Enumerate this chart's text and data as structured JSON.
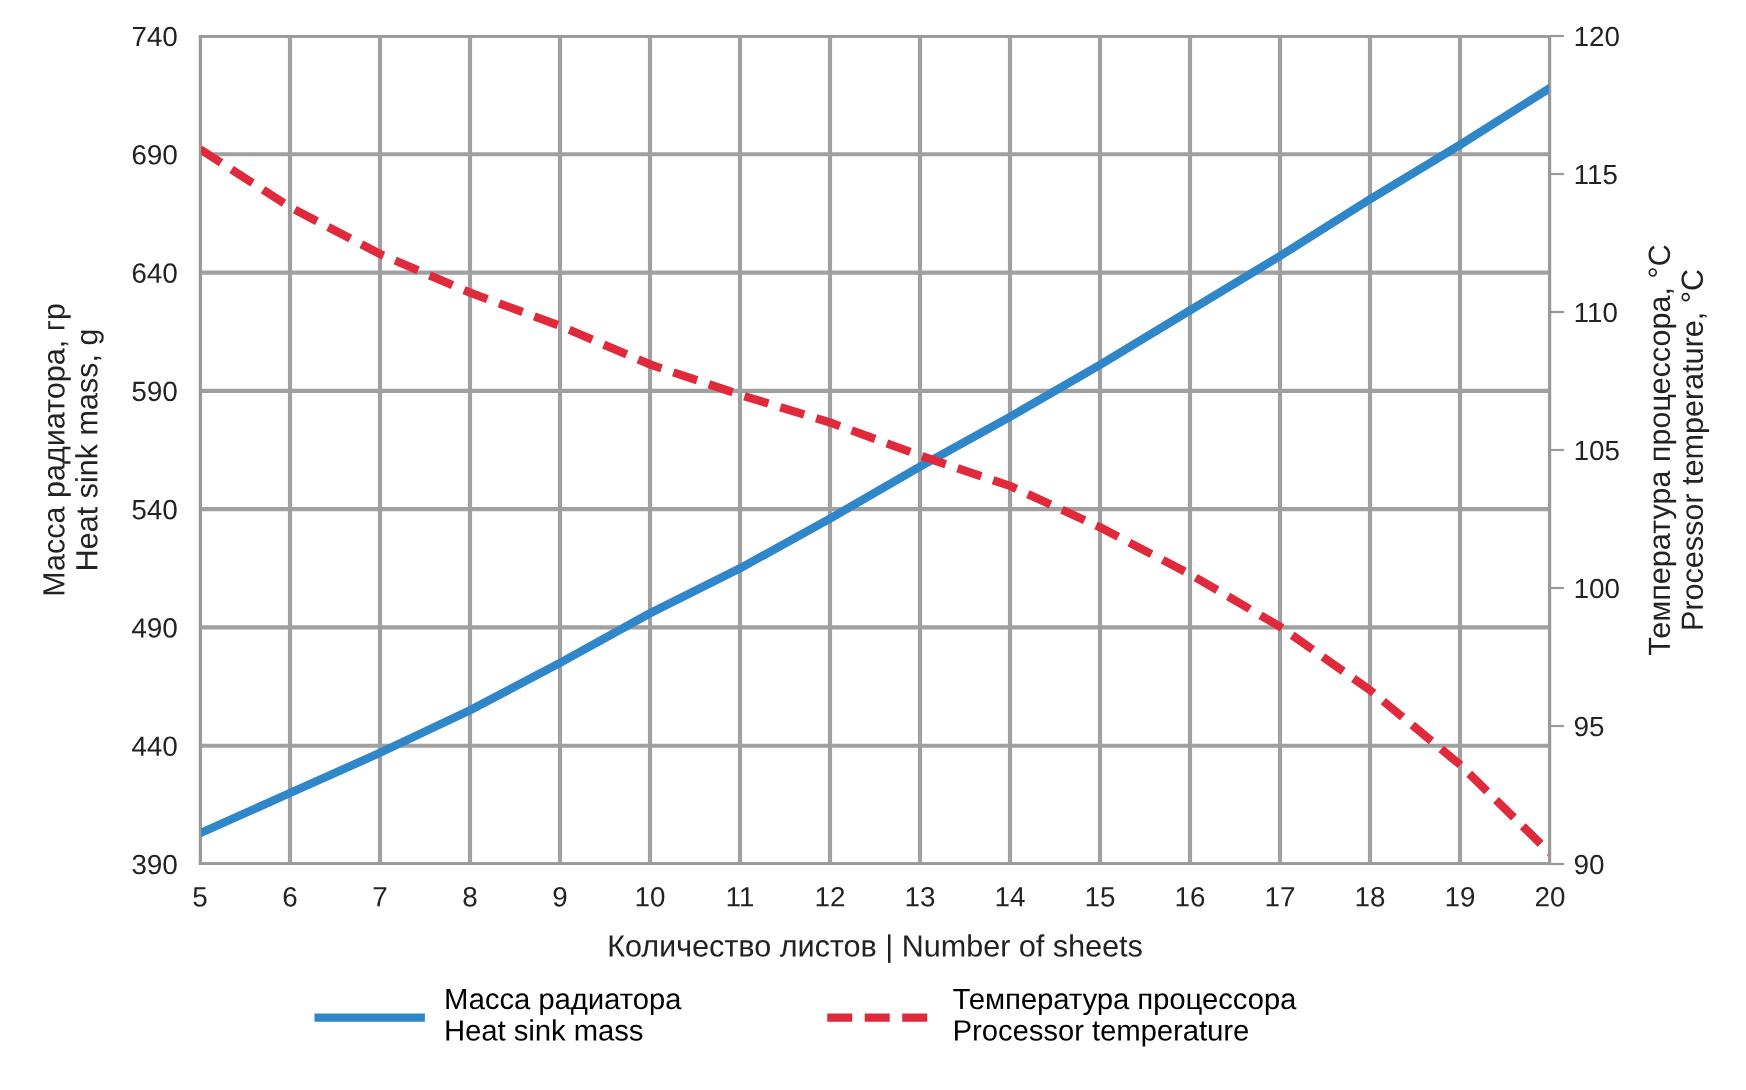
{
  "chart_data": {
    "type": "line",
    "xlabel": "Количество листов | Number of sheets",
    "ylabel": "Масса радиатора, гр\nHeat sink mass, g",
    "y2label": "Температура процессора, °C\nProcessor temperature, °C",
    "x": [
      5,
      6,
      7,
      8,
      9,
      10,
      11,
      12,
      13,
      14,
      15,
      16,
      17,
      18,
      19,
      20
    ],
    "series": [
      {
        "name": "Масса радиатора\nHeat sink mass",
        "color": "#2f86c8",
        "line_style": "solid",
        "values": [
          403,
          420,
          437,
          455,
          475,
          496,
          515,
          536,
          558,
          579,
          601,
          624,
          647,
          671,
          694,
          718
        ]
      },
      {
        "name": "Температура процессора\nProcessor temperature",
        "color": "#e0293a",
        "line_style": "dashed",
        "axis": "y2",
        "values": [
          115.9,
          113.8,
          112.1,
          110.7,
          109.5,
          108.1,
          107.0,
          106.0,
          104.8,
          103.7,
          102.2,
          100.5,
          98.6,
          96.3,
          93.6,
          90.4
        ]
      }
    ],
    "xlim": [
      5,
      20
    ],
    "xticks": [
      5,
      6,
      7,
      8,
      9,
      10,
      11,
      12,
      13,
      14,
      15,
      16,
      17,
      18,
      19,
      20
    ],
    "ylim": [
      390,
      740
    ],
    "yticks": [
      390,
      440,
      490,
      540,
      590,
      640,
      690,
      740
    ],
    "y2lim": [
      90,
      120
    ],
    "y2ticks": [
      90,
      95,
      100,
      105,
      110,
      115,
      120
    ],
    "grid": true,
    "legend": "bottom",
    "marker": "none"
  }
}
